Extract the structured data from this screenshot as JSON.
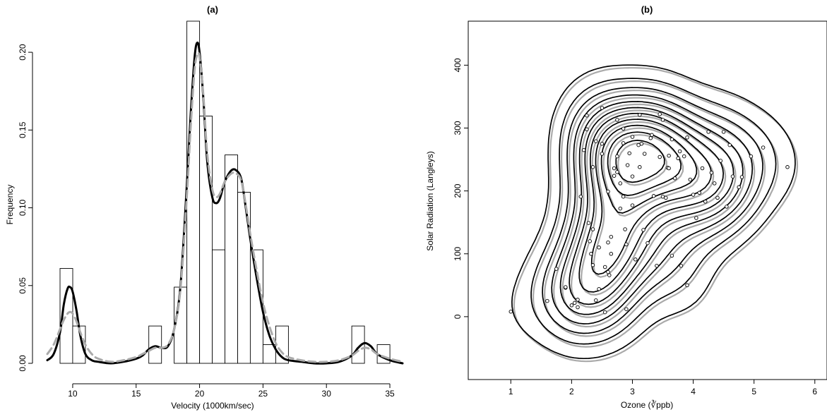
{
  "colors": {
    "solid": "#000000",
    "dashed": "#aaaaaa",
    "background": "#ffffff"
  },
  "chart_data": [
    {
      "type": "histogram",
      "title": "(a)",
      "xlabel": "Velocity (1000km/sec)",
      "ylabel": "Frequency",
      "xlim": [
        8,
        36
      ],
      "ylim": [
        0,
        0.22
      ],
      "xticks": [
        "10",
        "15",
        "20",
        "25",
        "30",
        "35"
      ],
      "yticks": [
        "0.00",
        "0.05",
        "0.10",
        "0.15",
        "0.20"
      ],
      "bin_width": 1,
      "bins": [
        {
          "x0": 9,
          "x1": 10,
          "value": 0.061
        },
        {
          "x0": 10,
          "x1": 11,
          "value": 0.024
        },
        {
          "x0": 16,
          "x1": 17,
          "value": 0.024
        },
        {
          "x0": 18,
          "x1": 19,
          "value": 0.049
        },
        {
          "x0": 19,
          "x1": 20,
          "value": 0.22
        },
        {
          "x0": 20,
          "x1": 21,
          "value": 0.159
        },
        {
          "x0": 21,
          "x1": 22,
          "value": 0.073
        },
        {
          "x0": 22,
          "x1": 23,
          "value": 0.134
        },
        {
          "x0": 23,
          "x1": 24,
          "value": 0.11
        },
        {
          "x0": 24,
          "x1": 25,
          "value": 0.073
        },
        {
          "x0": 25,
          "x1": 26,
          "value": 0.012
        },
        {
          "x0": 26,
          "x1": 27,
          "value": 0.024
        },
        {
          "x0": 32,
          "x1": 33,
          "value": 0.024
        },
        {
          "x0": 34,
          "x1": 35,
          "value": 0.012
        }
      ],
      "curves": [
        {
          "style": "solid",
          "x": [
            8,
            8.5,
            9,
            9.3,
            9.6,
            9.8,
            10,
            10.3,
            10.6,
            11,
            11.5,
            12,
            13,
            14,
            15,
            15.5,
            16,
            16.5,
            17,
            17.5,
            18,
            18.5,
            19,
            19.3,
            19.6,
            19.8,
            20,
            20.3,
            20.6,
            21,
            21.3,
            21.6,
            22,
            22.5,
            22.9,
            23.3,
            23.7,
            24,
            24.5,
            25,
            25.5,
            26,
            26.5,
            27,
            28,
            29,
            30,
            31,
            32,
            32.5,
            33,
            33.5,
            34,
            35,
            36
          ],
          "y": [
            0.002,
            0.006,
            0.02,
            0.038,
            0.048,
            0.049,
            0.046,
            0.034,
            0.018,
            0.006,
            0.002,
            0.001,
            0.0,
            0.001,
            0.003,
            0.005,
            0.009,
            0.011,
            0.01,
            0.011,
            0.022,
            0.05,
            0.115,
            0.16,
            0.196,
            0.206,
            0.2,
            0.17,
            0.13,
            0.107,
            0.103,
            0.106,
            0.117,
            0.124,
            0.124,
            0.118,
            0.097,
            0.08,
            0.055,
            0.033,
            0.018,
            0.009,
            0.004,
            0.002,
            0.001,
            0.0,
            0.0,
            0.001,
            0.005,
            0.01,
            0.013,
            0.011,
            0.006,
            0.002,
            0.0
          ]
        },
        {
          "style": "dashed",
          "x": [
            8,
            8.5,
            9,
            9.3,
            9.6,
            9.8,
            10,
            10.3,
            10.6,
            11,
            11.5,
            12,
            13,
            14,
            15,
            15.5,
            16,
            16.5,
            17,
            17.5,
            18,
            18.5,
            19,
            19.3,
            19.6,
            19.8,
            20,
            20.3,
            20.6,
            21,
            21.3,
            21.6,
            22,
            22.5,
            22.9,
            23.3,
            23.7,
            24,
            24.5,
            25,
            25.5,
            26,
            26.5,
            27,
            28,
            29,
            30,
            31,
            32,
            32.5,
            33,
            33.5,
            34,
            35,
            36
          ],
          "y": [
            0.006,
            0.012,
            0.022,
            0.028,
            0.032,
            0.033,
            0.032,
            0.027,
            0.02,
            0.012,
            0.006,
            0.003,
            0.001,
            0.002,
            0.004,
            0.006,
            0.008,
            0.01,
            0.01,
            0.012,
            0.022,
            0.048,
            0.108,
            0.152,
            0.188,
            0.198,
            0.197,
            0.172,
            0.135,
            0.112,
            0.107,
            0.109,
            0.117,
            0.122,
            0.122,
            0.117,
            0.099,
            0.083,
            0.06,
            0.039,
            0.024,
            0.013,
            0.007,
            0.004,
            0.002,
            0.001,
            0.001,
            0.002,
            0.005,
            0.008,
            0.01,
            0.009,
            0.006,
            0.003,
            0.001
          ]
        }
      ]
    },
    {
      "type": "contour",
      "title": "(b)",
      "xlabel": "Ozone",
      "xlabel_unit": "∛ppb",
      "ylabel": "Solar Radiation (Langleys)",
      "xlim": [
        0.3,
        6.2
      ],
      "ylim": [
        -100,
        470
      ],
      "xticks": [
        "1",
        "2",
        "3",
        "4",
        "5",
        "6"
      ],
      "yticks": [
        "0",
        "100",
        "200",
        "300",
        "400"
      ],
      "points": [
        [
          1.0,
          8
        ],
        [
          1.6,
          25
        ],
        [
          1.75,
          76
        ],
        [
          1.9,
          46
        ],
        [
          1.9,
          47
        ],
        [
          2.0,
          18
        ],
        [
          2.05,
          22
        ],
        [
          2.1,
          27
        ],
        [
          2.1,
          15
        ],
        [
          2.15,
          191
        ],
        [
          2.2,
          265
        ],
        [
          2.25,
          298
        ],
        [
          2.25,
          320
        ],
        [
          2.28,
          149
        ],
        [
          2.3,
          120
        ],
        [
          2.32,
          100
        ],
        [
          2.35,
          82
        ],
        [
          2.35,
          139
        ],
        [
          2.35,
          238
        ],
        [
          2.4,
          279
        ],
        [
          2.4,
          26
        ],
        [
          2.45,
          44
        ],
        [
          2.45,
          110
        ],
        [
          2.5,
          332
        ],
        [
          2.5,
          275
        ],
        [
          2.5,
          259
        ],
        [
          2.55,
          7
        ],
        [
          2.55,
          79
        ],
        [
          2.6,
          199
        ],
        [
          2.6,
          118
        ],
        [
          2.6,
          71
        ],
        [
          2.62,
          66
        ],
        [
          2.65,
          100
        ],
        [
          2.65,
          127
        ],
        [
          2.7,
          224
        ],
        [
          2.7,
          236
        ],
        [
          2.75,
          255
        ],
        [
          2.75,
          313
        ],
        [
          2.75,
          230
        ],
        [
          2.8,
          172
        ],
        [
          2.8,
          212
        ],
        [
          2.85,
          276
        ],
        [
          2.85,
          299
        ],
        [
          2.85,
          191
        ],
        [
          2.88,
          139
        ],
        [
          2.9,
          115
        ],
        [
          2.9,
          12
        ],
        [
          2.92,
          241
        ],
        [
          2.95,
          260
        ],
        [
          3.0,
          286
        ],
        [
          3.0,
          177
        ],
        [
          3.0,
          223
        ],
        [
          3.05,
          91
        ],
        [
          3.1,
          273
        ],
        [
          3.12,
          321
        ],
        [
          3.12,
          238
        ],
        [
          3.15,
          275
        ],
        [
          3.18,
          138
        ],
        [
          3.2,
          259
        ],
        [
          3.25,
          117
        ],
        [
          3.3,
          284
        ],
        [
          3.32,
          289
        ],
        [
          3.35,
          192
        ],
        [
          3.4,
          81
        ],
        [
          3.45,
          322
        ],
        [
          3.45,
          254
        ],
        [
          3.5,
          313
        ],
        [
          3.5,
          191
        ],
        [
          3.55,
          189
        ],
        [
          3.58,
          237
        ],
        [
          3.6,
          256
        ],
        [
          3.6,
          236
        ],
        [
          3.65,
          97
        ],
        [
          3.65,
          282
        ],
        [
          3.7,
          220
        ],
        [
          3.75,
          252
        ],
        [
          3.78,
          263
        ],
        [
          3.8,
          81
        ],
        [
          3.85,
          255
        ],
        [
          3.9,
          50
        ],
        [
          3.9,
          285
        ],
        [
          3.95,
          218
        ],
        [
          4.0,
          194
        ],
        [
          4.05,
          157
        ],
        [
          4.1,
          197
        ],
        [
          4.15,
          236
        ],
        [
          4.2,
          183
        ],
        [
          4.25,
          294
        ],
        [
          4.3,
          229
        ],
        [
          4.35,
          212
        ],
        [
          4.4,
          189
        ],
        [
          4.45,
          248
        ],
        [
          4.5,
          294
        ],
        [
          4.55,
          175
        ],
        [
          4.6,
          273
        ],
        [
          4.65,
          223
        ],
        [
          4.75,
          206
        ],
        [
          4.8,
          222
        ],
        [
          4.95,
          255
        ],
        [
          5.15,
          269
        ],
        [
          5.55,
          238
        ]
      ],
      "contour_peaks": [
        {
          "x": 3.5,
          "y": 243
        },
        {
          "x": 2.65,
          "y": 77
        }
      ]
    }
  ]
}
